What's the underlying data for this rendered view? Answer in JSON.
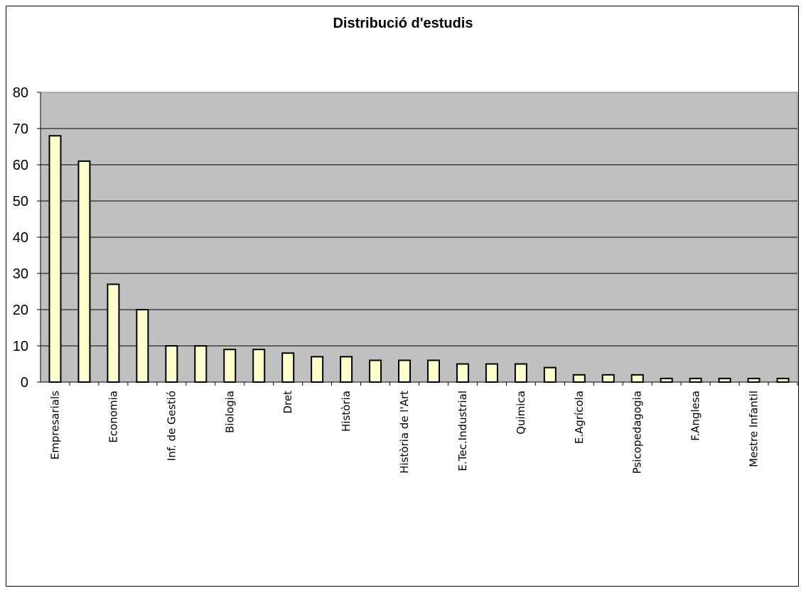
{
  "chart_data": {
    "type": "bar",
    "title": "Distribució d'estudis",
    "xlabel": "",
    "ylabel": "",
    "ylim": [
      0,
      80
    ],
    "yticks": [
      0,
      10,
      20,
      30,
      40,
      50,
      60,
      70,
      80
    ],
    "grid": true,
    "legend": "none",
    "colors": {
      "plot_background": "#c0c0c0",
      "bar_fill": "#ffffcc",
      "bar_stroke": "#000000",
      "gridline": "#000000"
    },
    "categories": [
      "Empresarials",
      "",
      "Economia",
      "",
      "Inf. de Gestió",
      "",
      "Biologia",
      "",
      "Dret",
      "",
      "Història",
      "",
      "Història de l'Art",
      "",
      "E.Tec.Industrial",
      "",
      "Quimica",
      "",
      "E.Agrícola",
      "",
      "Psicopedagogia",
      "",
      "F.Anglesa",
      "",
      "Mestre Infantil",
      ""
    ],
    "values": [
      68,
      61,
      27,
      20,
      10,
      10,
      9,
      9,
      8,
      7,
      7,
      6,
      6,
      6,
      5,
      5,
      5,
      4,
      2,
      2,
      2,
      1,
      1,
      1,
      1,
      1
    ]
  }
}
